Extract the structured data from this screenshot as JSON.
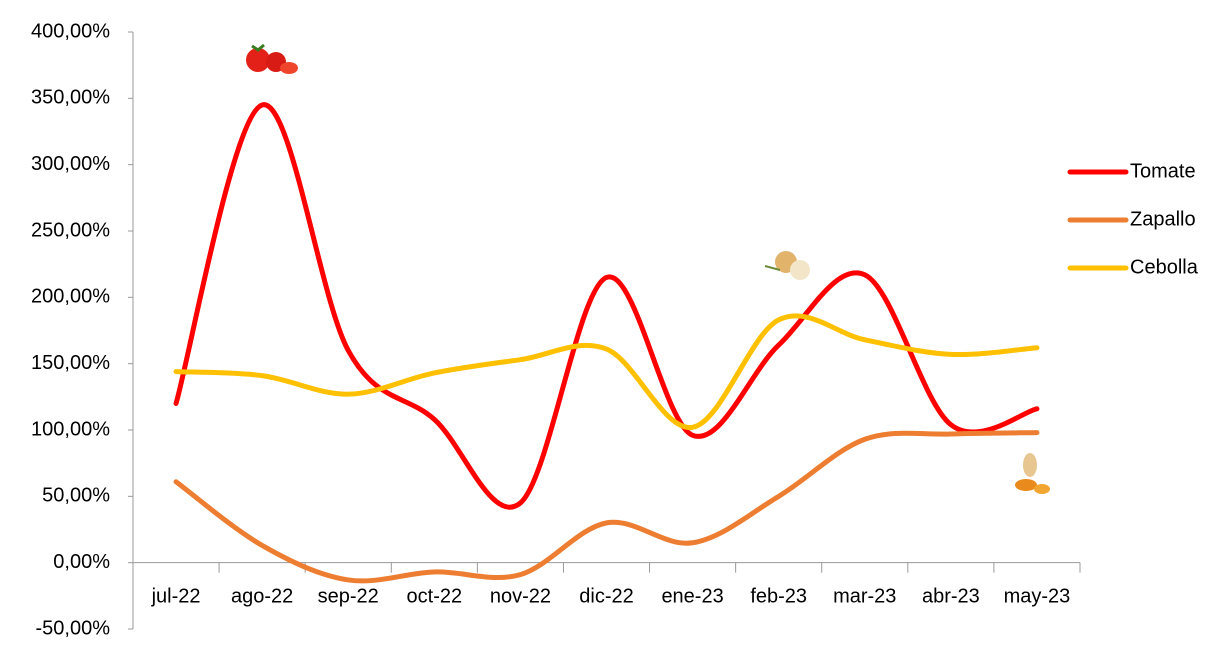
{
  "chart_data": {
    "type": "line",
    "categories": [
      "jul-22",
      "ago-22",
      "sep-22",
      "oct-22",
      "nov-22",
      "dic-22",
      "ene-23",
      "feb-23",
      "mar-23",
      "abr-23",
      "may-23"
    ],
    "series": [
      {
        "name": "Tomate",
        "color": "#ff0000",
        "values": [
          120,
          345,
          160,
          108,
          45,
          215,
          96,
          164,
          217,
          104,
          116
        ]
      },
      {
        "name": "Zapallo",
        "color": "#ed7d31",
        "values": [
          61,
          13,
          -13,
          -7,
          -9,
          30,
          15,
          50,
          93,
          97,
          98
        ]
      },
      {
        "name": "Cebolla",
        "color": "#ffc000",
        "values": [
          144,
          141,
          127,
          143,
          153,
          161,
          102,
          183,
          168,
          157,
          162
        ]
      }
    ],
    "ylim": [
      -50,
      400
    ],
    "yticks": [
      {
        "value": -50,
        "label": "-50,00%"
      },
      {
        "value": 0,
        "label": "0,00%"
      },
      {
        "value": 50,
        "label": "50,00%"
      },
      {
        "value": 100,
        "label": "100,00%"
      },
      {
        "value": 150,
        "label": "150,00%"
      },
      {
        "value": 200,
        "label": "200,00%"
      },
      {
        "value": 250,
        "label": "250,00%"
      },
      {
        "value": 300,
        "label": "300,00%"
      },
      {
        "value": 350,
        "label": "350,00%"
      },
      {
        "value": 400,
        "label": "400,00%"
      }
    ],
    "legend": "right"
  }
}
